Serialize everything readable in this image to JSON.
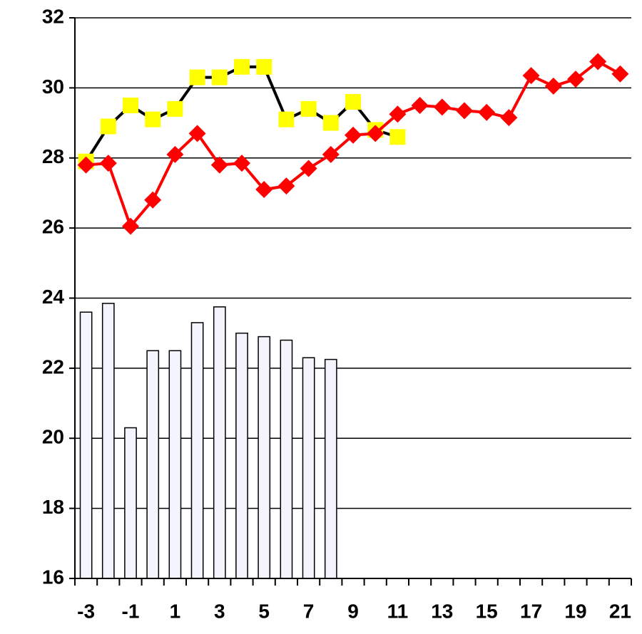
{
  "chart_data": {
    "type": "bar-line",
    "categories": [
      "-3",
      null,
      "-1",
      null,
      "1",
      null,
      "3",
      null,
      "5",
      null,
      "7",
      null,
      "9",
      null,
      "11",
      null,
      "13",
      null,
      "15",
      null,
      "17",
      null,
      "19",
      null,
      "21"
    ],
    "series": [
      {
        "type": "bar",
        "color": "#f4f4ff",
        "values": [
          23.6,
          23.85,
          20.3,
          22.5,
          22.5,
          23.3,
          23.75,
          23.0,
          22.9,
          22.8,
          22.3,
          22.25,
          null,
          null,
          null,
          null,
          null,
          null,
          null,
          null,
          null,
          null,
          null,
          null,
          null
        ]
      },
      {
        "type": "line",
        "color": "#000000",
        "marker_color": "#ffff00",
        "marker": "square",
        "values": [
          27.9,
          28.9,
          29.5,
          29.1,
          29.4,
          30.3,
          30.3,
          30.6,
          30.6,
          29.1,
          29.4,
          29.0,
          29.6,
          28.8,
          28.6,
          null,
          null,
          null,
          null,
          null,
          null,
          null,
          null,
          null,
          null
        ]
      },
      {
        "type": "line",
        "color": "#ff0000",
        "marker_color": "#ff0000",
        "marker": "diamond",
        "values": [
          27.8,
          27.85,
          26.05,
          26.8,
          28.1,
          28.7,
          27.8,
          27.85,
          27.1,
          27.2,
          27.7,
          28.1,
          28.65,
          28.7,
          29.25,
          29.5,
          29.45,
          29.35,
          29.3,
          29.15,
          30.35,
          30.05,
          30.25,
          30.75,
          30.4
        ]
      }
    ],
    "ylim": [
      16,
      32
    ],
    "yticks": [
      16,
      18,
      20,
      22,
      24,
      26,
      28,
      30,
      32
    ],
    "grid": true
  }
}
